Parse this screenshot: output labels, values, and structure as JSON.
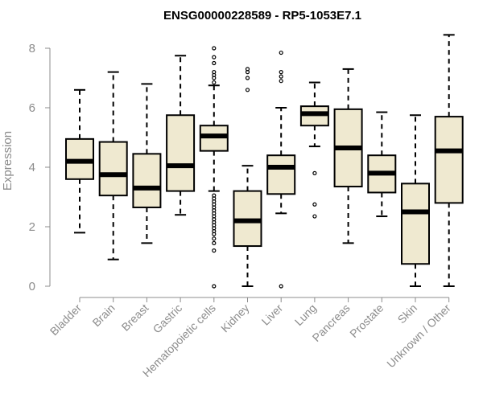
{
  "chart_data": {
    "type": "boxplot",
    "title": "ENSG00000228589 - RP5-1053E7.1",
    "xlabel": "",
    "ylabel": "Expression",
    "ylim": [
      0,
      8.5
    ],
    "yticks": [
      0,
      2,
      4,
      6,
      8
    ],
    "colors": {
      "box_fill": "#efe9d0",
      "box_stroke": "#000000",
      "axis": "#8c8c8c"
    },
    "categories": [
      "Bladder",
      "Brain",
      "Breast",
      "Gastric",
      "Hematopoietic cells",
      "Kidney",
      "Liver",
      "Lung",
      "Pancreas",
      "Prostate",
      "Skin",
      "Unknown / Other"
    ],
    "boxes": [
      {
        "category": "Bladder",
        "whisker_low": 1.8,
        "q1": 3.6,
        "median": 4.2,
        "q3": 4.95,
        "whisker_high": 6.6,
        "outliers": []
      },
      {
        "category": "Brain",
        "whisker_low": 0.9,
        "q1": 3.05,
        "median": 3.75,
        "q3": 4.85,
        "whisker_high": 7.2,
        "outliers": []
      },
      {
        "category": "Breast",
        "whisker_low": 1.45,
        "q1": 2.65,
        "median": 3.3,
        "q3": 4.45,
        "whisker_high": 6.8,
        "outliers": []
      },
      {
        "category": "Gastric",
        "whisker_low": 2.4,
        "q1": 3.2,
        "median": 4.05,
        "q3": 5.75,
        "whisker_high": 7.75,
        "outliers": []
      },
      {
        "category": "Hematopoietic cells",
        "whisker_low": 3.2,
        "q1": 4.55,
        "median": 5.05,
        "q3": 5.4,
        "whisker_high": 6.75,
        "outliers": [
          0.0,
          1.2,
          1.45,
          1.6,
          1.75,
          1.85,
          1.95,
          2.05,
          2.15,
          2.25,
          2.35,
          2.45,
          2.55,
          2.65,
          2.75,
          2.85,
          2.95,
          3.05,
          6.85,
          7.0,
          7.1,
          7.2,
          7.5,
          7.7,
          8.0
        ]
      },
      {
        "category": "Kidney",
        "whisker_low": 0.0,
        "q1": 1.35,
        "median": 2.2,
        "q3": 3.2,
        "whisker_high": 4.05,
        "outliers": [
          6.6,
          7.0,
          7.2,
          7.3
        ]
      },
      {
        "category": "Liver",
        "whisker_low": 2.45,
        "q1": 3.1,
        "median": 4.0,
        "q3": 4.4,
        "whisker_high": 6.0,
        "outliers": [
          0.0,
          6.9,
          7.05,
          7.2,
          7.85
        ]
      },
      {
        "category": "Lung",
        "whisker_low": 4.7,
        "q1": 5.4,
        "median": 5.8,
        "q3": 6.05,
        "whisker_high": 6.85,
        "outliers": [
          2.35,
          2.75,
          3.8
        ]
      },
      {
        "category": "Pancreas",
        "whisker_low": 1.45,
        "q1": 3.35,
        "median": 4.65,
        "q3": 5.95,
        "whisker_high": 7.3,
        "outliers": []
      },
      {
        "category": "Prostate",
        "whisker_low": 2.35,
        "q1": 3.15,
        "median": 3.8,
        "q3": 4.4,
        "whisker_high": 5.85,
        "outliers": []
      },
      {
        "category": "Skin",
        "whisker_low": 0.0,
        "q1": 0.75,
        "median": 2.5,
        "q3": 3.45,
        "whisker_high": 5.75,
        "outliers": []
      },
      {
        "category": "Unknown / Other",
        "whisker_low": 0.0,
        "q1": 2.8,
        "median": 4.55,
        "q3": 5.7,
        "whisker_high": 8.45,
        "outliers": []
      }
    ]
  }
}
